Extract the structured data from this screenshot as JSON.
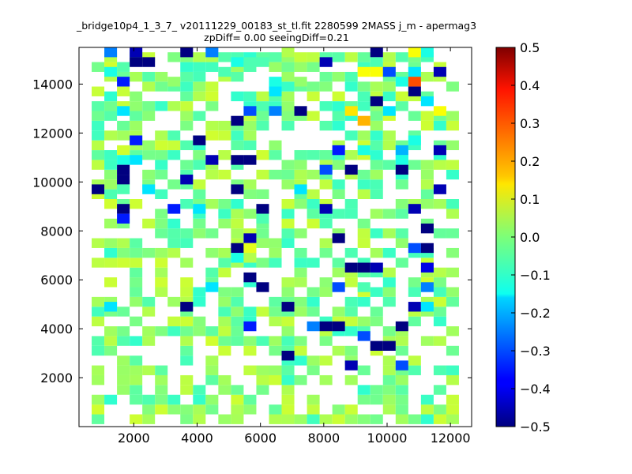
{
  "chart_data": {
    "type": "heatmap",
    "title": "_bridge10p4_1_3_7_ v20111229_00183_st_tl.fit 2280599 2MASS j_m - apermag3",
    "subtitle": "zpDiff= 0.00 seeingDiff=0.21",
    "xlabel": "",
    "ylabel": "",
    "xlim": [
      270,
      12670
    ],
    "ylim": [
      0,
      15500
    ],
    "x_ticks": [
      "2000",
      "4000",
      "6000",
      "8000",
      "10000",
      "12000"
    ],
    "y_ticks": [
      "2000",
      "4000",
      "6000",
      "8000",
      "10000",
      "12000",
      "14000"
    ],
    "colorbar": {
      "colormap": "jet",
      "range": [
        -0.5,
        0.5
      ],
      "ticks": [
        "0.5",
        "0.4",
        "0.3",
        "0.2",
        "0.1",
        "0.0",
        "−0.1",
        "−0.2",
        "−0.3",
        "−0.4",
        "−0.5"
      ]
    },
    "grid": false,
    "bin_size": 400,
    "cells": [
      [
        1270,
        15300,
        -0.25
      ],
      [
        2070,
        15300,
        -0.45
      ],
      [
        3670,
        15300,
        -0.5
      ],
      [
        4470,
        15300,
        -0.25
      ],
      [
        6870,
        15300,
        0.05
      ],
      [
        9670,
        15300,
        -0.5
      ],
      [
        10870,
        15300,
        0.12
      ],
      [
        11270,
        15300,
        -0.1
      ],
      [
        2070,
        14900,
        -0.5
      ],
      [
        2470,
        14900,
        -0.5
      ],
      [
        5270,
        14900,
        -0.1
      ],
      [
        5670,
        14900,
        -0.05
      ],
      [
        6070,
        14900,
        -0.05
      ],
      [
        8070,
        14900,
        -0.45
      ],
      [
        9670,
        14900,
        -0.05
      ],
      [
        1270,
        14500,
        -0.1
      ],
      [
        4870,
        14500,
        -0.05
      ],
      [
        9270,
        14500,
        0.12
      ],
      [
        9670,
        14500,
        0.12
      ],
      [
        10070,
        14500,
        -0.3
      ],
      [
        10870,
        14500,
        -0.15
      ],
      [
        11670,
        14500,
        -0.45
      ],
      [
        1670,
        14100,
        -0.35
      ],
      [
        3270,
        14100,
        0.02
      ],
      [
        6470,
        14100,
        -0.1
      ],
      [
        7270,
        14100,
        0.02
      ],
      [
        10470,
        14100,
        -0.1
      ],
      [
        10870,
        14100,
        0.3
      ],
      [
        870,
        13700,
        0.07
      ],
      [
        1670,
        13700,
        0.07
      ],
      [
        6470,
        13700,
        -0.15
      ],
      [
        10870,
        13700,
        -0.5
      ],
      [
        9670,
        13300,
        -0.5
      ],
      [
        11270,
        13300,
        -0.15
      ],
      [
        1670,
        12900,
        -0.15
      ],
      [
        5670,
        12900,
        -0.3
      ],
      [
        6470,
        12900,
        -0.25
      ],
      [
        7270,
        12900,
        -0.5
      ],
      [
        8870,
        12900,
        0.15
      ],
      [
        10070,
        12900,
        -0.15
      ],
      [
        11670,
        12900,
        0.12
      ],
      [
        5270,
        12500,
        -0.5
      ],
      [
        9270,
        12500,
        0.2
      ],
      [
        2070,
        11700,
        -0.35
      ],
      [
        4070,
        11700,
        -0.5
      ],
      [
        10870,
        11700,
        -0.1
      ],
      [
        1670,
        11300,
        0.08
      ],
      [
        8470,
        11300,
        -0.35
      ],
      [
        9270,
        11300,
        -0.1
      ],
      [
        10470,
        11300,
        -0.2
      ],
      [
        11670,
        11300,
        -0.45
      ],
      [
        1670,
        10900,
        -0.1
      ],
      [
        2070,
        10900,
        -0.15
      ],
      [
        4470,
        10900,
        -0.45
      ],
      [
        5270,
        10900,
        -0.5
      ],
      [
        5670,
        10900,
        -0.5
      ],
      [
        10470,
        10900,
        -0.1
      ],
      [
        1670,
        10500,
        -0.5
      ],
      [
        8070,
        10500,
        -0.3
      ],
      [
        8870,
        10500,
        -0.5
      ],
      [
        10470,
        10500,
        -0.5
      ],
      [
        1670,
        10100,
        -0.5
      ],
      [
        3670,
        10100,
        -0.45
      ],
      [
        870,
        9700,
        -0.5
      ],
      [
        1670,
        9700,
        -0.05
      ],
      [
        2470,
        9700,
        -0.15
      ],
      [
        5270,
        9700,
        -0.5
      ],
      [
        7270,
        9700,
        -0.15
      ],
      [
        11670,
        9700,
        -0.45
      ],
      [
        1670,
        8900,
        -0.5
      ],
      [
        3270,
        8900,
        -0.35
      ],
      [
        4070,
        8900,
        -0.15
      ],
      [
        6070,
        8900,
        -0.5
      ],
      [
        8070,
        8900,
        -0.45
      ],
      [
        10870,
        8900,
        -0.45
      ],
      [
        1670,
        8500,
        -0.35
      ],
      [
        6070,
        8500,
        -0.05
      ],
      [
        11270,
        8100,
        -0.5
      ],
      [
        5670,
        7700,
        -0.45
      ],
      [
        5270,
        7300,
        -0.5
      ],
      [
        5670,
        7300,
        0.1
      ],
      [
        5270,
        6900,
        -0.1
      ],
      [
        5670,
        6900,
        0.05
      ],
      [
        8870,
        6500,
        -0.5
      ],
      [
        9270,
        6500,
        -0.5
      ],
      [
        9670,
        6500,
        -0.45
      ],
      [
        11270,
        6500,
        -0.4
      ],
      [
        5670,
        6100,
        -0.5
      ],
      [
        8470,
        7700,
        -0.5
      ],
      [
        10870,
        7300,
        -0.3
      ],
      [
        11270,
        7300,
        -0.5
      ],
      [
        4470,
        5700,
        -0.15
      ],
      [
        6070,
        5700,
        -0.5
      ],
      [
        8470,
        5700,
        -0.3
      ],
      [
        9270,
        5700,
        -0.05
      ],
      [
        11270,
        5700,
        -0.25
      ],
      [
        1270,
        4900,
        -0.15
      ],
      [
        3670,
        4900,
        -0.5
      ],
      [
        6870,
        4900,
        -0.5
      ],
      [
        10870,
        4900,
        -0.45
      ],
      [
        11270,
        4900,
        -0.15
      ],
      [
        5670,
        4100,
        -0.35
      ],
      [
        7670,
        4100,
        -0.25
      ],
      [
        8070,
        4100,
        -0.5
      ],
      [
        8470,
        4100,
        -0.5
      ],
      [
        10470,
        4100,
        -0.5
      ],
      [
        9270,
        3700,
        -0.3
      ],
      [
        9670,
        3300,
        -0.5
      ],
      [
        10070,
        3300,
        -0.5
      ],
      [
        6870,
        2900,
        -0.5
      ],
      [
        8870,
        2500,
        -0.45
      ],
      [
        10470,
        2500,
        -0.3
      ]
    ]
  }
}
